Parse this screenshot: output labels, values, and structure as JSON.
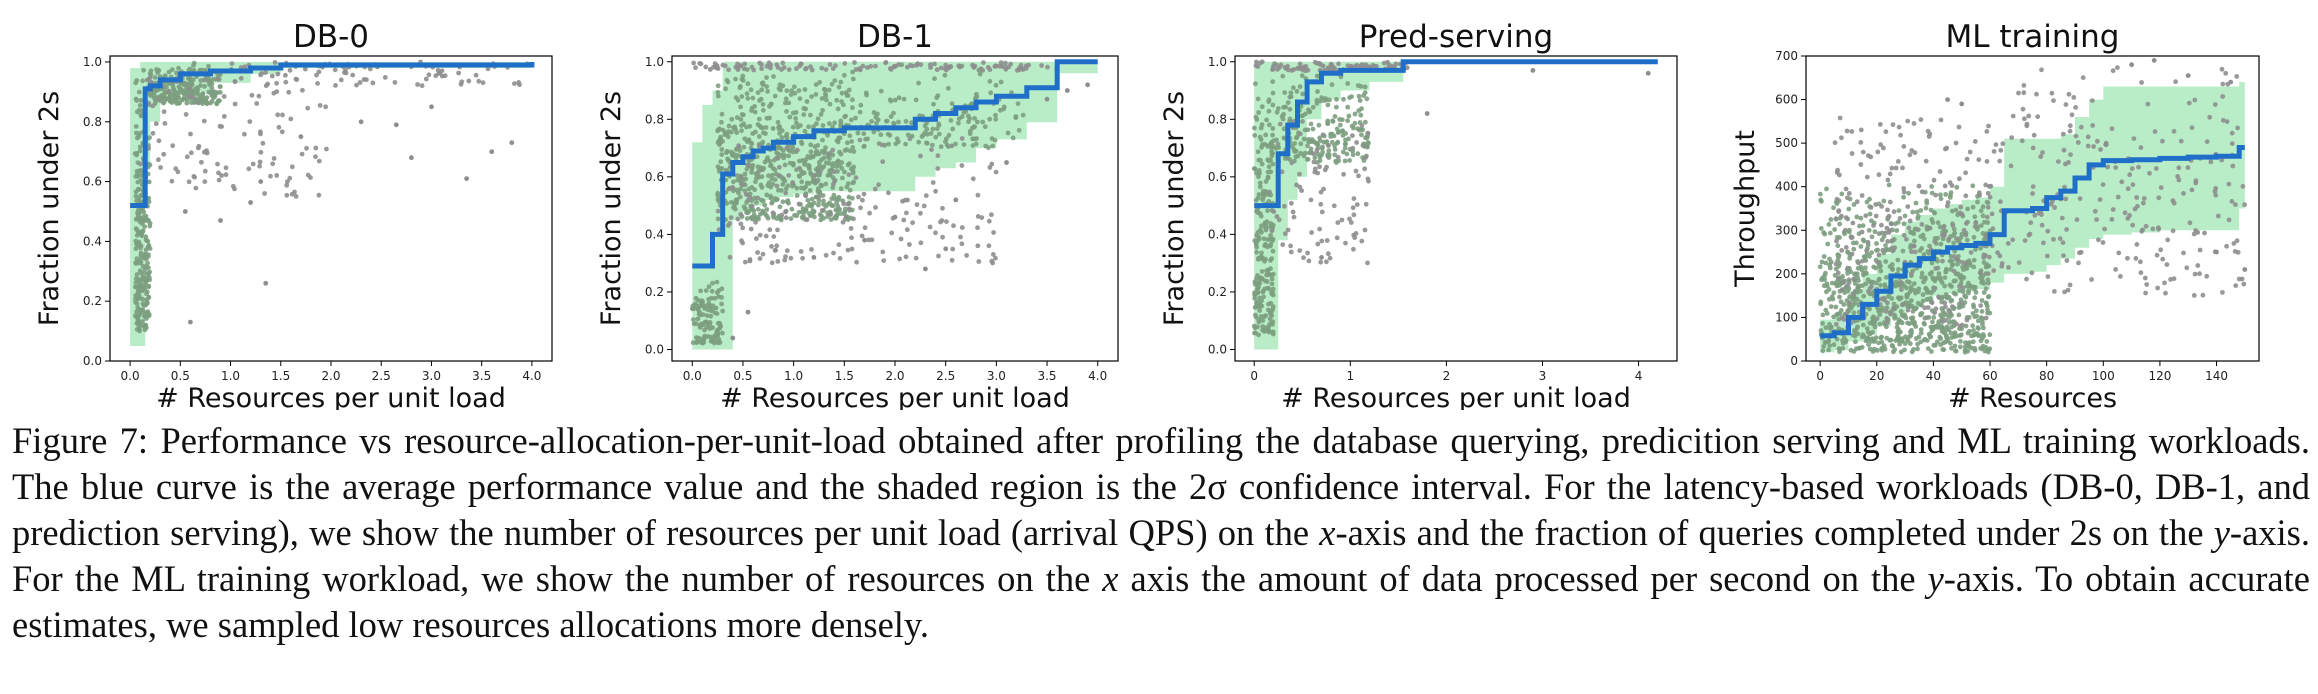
{
  "colors": {
    "mean_curve": "#1f6fc9",
    "band": "#b9edc7",
    "points_dense": "#7c9f7f",
    "points_sparse": "#8e8e8e",
    "axis": "#000000"
  },
  "chart_data": [
    {
      "type": "scatter",
      "title": "DB-0",
      "xlabel": "# Resources per unit load",
      "ylabel": "Fraction under 2s",
      "xlim": [
        -0.2,
        4.2
      ],
      "ylim": [
        0.0,
        1.02
      ],
      "xticks": [
        0.0,
        0.5,
        1.0,
        1.5,
        2.0,
        2.5,
        3.0,
        3.5,
        4.0
      ],
      "xtick_labels": [
        "0.0",
        "0.5",
        "1.0",
        "1.5",
        "2.0",
        "2.5",
        "3.0",
        "3.5",
        "4.0"
      ],
      "yticks": [
        0.0,
        0.2,
        0.4,
        0.6,
        0.8,
        1.0
      ],
      "ytick_labels": [
        "0.0",
        "0.2",
        "0.4",
        "0.6",
        "0.8",
        "1.0"
      ],
      "mean_x": [
        0.0,
        0.1,
        0.15,
        0.2,
        0.3,
        0.5,
        0.8,
        1.2,
        1.5,
        4.0
      ],
      "mean_y": [
        0.52,
        0.52,
        0.91,
        0.92,
        0.94,
        0.96,
        0.97,
        0.98,
        0.99,
        1.0
      ],
      "band_lower": [
        0.05,
        0.05,
        0.65,
        0.8,
        0.88,
        0.9,
        0.93,
        0.96,
        0.98,
        1.0
      ],
      "band_upper": [
        0.98,
        1.0,
        1.0,
        1.0,
        1.0,
        1.0,
        1.0,
        1.0,
        1.0,
        1.0
      ],
      "scatter_clusters": [
        {
          "x": [
            0.05,
            0.2
          ],
          "y": [
            0.1,
            1.0
          ],
          "n": 260,
          "density": "dense"
        },
        {
          "x": [
            0.2,
            0.9
          ],
          "y": [
            0.86,
            1.0
          ],
          "n": 240,
          "density": "dense"
        },
        {
          "x": [
            0.1,
            2.0
          ],
          "y": [
            0.55,
            1.0
          ],
          "n": 120,
          "density": "sparse"
        },
        {
          "x": [
            1.0,
            4.0
          ],
          "y": [
            0.92,
            1.0
          ],
          "n": 80,
          "density": "sparse"
        }
      ],
      "scatter_points": [
        [
          0.6,
          0.13
        ],
        [
          1.35,
          0.26
        ],
        [
          0.55,
          0.5
        ],
        [
          0.9,
          0.47
        ],
        [
          1.3,
          0.6
        ],
        [
          3.6,
          0.7
        ],
        [
          3.35,
          0.61
        ],
        [
          2.8,
          0.68
        ],
        [
          2.65,
          0.79
        ],
        [
          3.0,
          0.85
        ],
        [
          3.8,
          0.73
        ],
        [
          1.7,
          0.75
        ],
        [
          2.3,
          0.8
        ],
        [
          1.2,
          0.53
        ]
      ]
    },
    {
      "type": "scatter",
      "title": "DB-1",
      "xlabel": "# Resources per unit load",
      "ylabel": "Fraction under 2s",
      "xlim": [
        -0.2,
        4.2
      ],
      "ylim": [
        -0.04,
        1.02
      ],
      "xticks": [
        0.0,
        0.5,
        1.0,
        1.5,
        2.0,
        2.5,
        3.0,
        3.5,
        4.0
      ],
      "xtick_labels": [
        "0.0",
        "0.5",
        "1.0",
        "1.5",
        "2.0",
        "2.5",
        "3.0",
        "3.5",
        "4.0"
      ],
      "yticks": [
        0.0,
        0.2,
        0.4,
        0.6,
        0.8,
        1.0
      ],
      "ytick_labels": [
        "0.0",
        "0.2",
        "0.4",
        "0.6",
        "0.8",
        "1.0"
      ],
      "mean_x": [
        0.0,
        0.1,
        0.2,
        0.3,
        0.4,
        0.5,
        0.6,
        0.7,
        0.8,
        1.0,
        1.2,
        1.5,
        2.0,
        2.2,
        2.4,
        2.6,
        2.8,
        3.0,
        3.3,
        3.6,
        4.0
      ],
      "mean_y": [
        0.29,
        0.29,
        0.4,
        0.61,
        0.65,
        0.67,
        0.69,
        0.7,
        0.72,
        0.74,
        0.76,
        0.77,
        0.77,
        0.8,
        0.82,
        0.84,
        0.86,
        0.88,
        0.91,
        1.0,
        1.0
      ],
      "band_lower": [
        0.0,
        0.0,
        0.0,
        0.0,
        0.45,
        0.48,
        0.5,
        0.52,
        0.53,
        0.54,
        0.55,
        0.55,
        0.55,
        0.6,
        0.63,
        0.65,
        0.7,
        0.73,
        0.79,
        0.96,
        1.0
      ],
      "band_upper": [
        0.72,
        0.85,
        0.9,
        1.0,
        1.0,
        1.0,
        1.0,
        1.0,
        1.0,
        1.0,
        1.0,
        1.0,
        1.0,
        1.0,
        1.0,
        1.0,
        1.0,
        1.0,
        1.0,
        1.0,
        1.0
      ],
      "scatter_clusters": [
        {
          "x": [
            0.0,
            0.3
          ],
          "y": [
            0.02,
            0.25
          ],
          "n": 110,
          "density": "dense"
        },
        {
          "x": [
            0.25,
            1.6
          ],
          "y": [
            0.45,
            1.0
          ],
          "n": 650,
          "density": "dense"
        },
        {
          "x": [
            1.6,
            3.3
          ],
          "y": [
            0.7,
            1.0
          ],
          "n": 160,
          "density": "dense"
        },
        {
          "x": [
            0.25,
            3.0
          ],
          "y": [
            0.3,
            0.75
          ],
          "n": 180,
          "density": "sparse"
        },
        {
          "x": [
            0.0,
            3.6
          ],
          "y": [
            0.97,
            1.0
          ],
          "n": 120,
          "density": "sparse"
        }
      ],
      "scatter_points": [
        [
          0.4,
          0.04
        ],
        [
          0.55,
          0.13
        ],
        [
          2.3,
          0.28
        ],
        [
          2.5,
          0.35
        ],
        [
          3.5,
          0.87
        ],
        [
          3.7,
          0.9
        ],
        [
          3.9,
          0.92
        ],
        [
          2.0,
          0.46
        ],
        [
          2.6,
          0.52
        ],
        [
          3.1,
          0.65
        ],
        [
          1.7,
          0.38
        ],
        [
          1.2,
          0.32
        ]
      ]
    },
    {
      "type": "scatter",
      "title": "Pred-serving",
      "xlabel": "# Resources per unit load",
      "ylabel": "Fraction under 2s",
      "xlim": [
        -0.2,
        4.4
      ],
      "ylim": [
        -0.04,
        1.02
      ],
      "xticks": [
        0,
        1,
        2,
        3,
        4
      ],
      "xtick_labels": [
        "0",
        "1",
        "2",
        "3",
        "4"
      ],
      "yticks": [
        0.0,
        0.2,
        0.4,
        0.6,
        0.8,
        1.0
      ],
      "ytick_labels": [
        "0.0",
        "0.2",
        "0.4",
        "0.6",
        "0.8",
        "1.0"
      ],
      "mean_x": [
        0.0,
        0.15,
        0.25,
        0.35,
        0.45,
        0.55,
        0.7,
        0.9,
        1.2,
        1.55,
        4.2
      ],
      "mean_y": [
        0.5,
        0.5,
        0.68,
        0.78,
        0.86,
        0.93,
        0.96,
        0.97,
        0.97,
        1.0,
        1.0
      ],
      "band_lower": [
        0.0,
        0.0,
        0.38,
        0.52,
        0.6,
        0.8,
        0.87,
        0.9,
        0.93,
        1.0,
        1.0
      ],
      "band_upper": [
        1.0,
        1.0,
        1.0,
        1.0,
        1.0,
        1.0,
        1.0,
        1.0,
        1.0,
        1.0,
        1.0
      ],
      "scatter_clusters": [
        {
          "x": [
            0.0,
            0.2
          ],
          "y": [
            0.05,
            1.0
          ],
          "n": 220,
          "density": "dense"
        },
        {
          "x": [
            0.15,
            1.2
          ],
          "y": [
            0.65,
            1.0
          ],
          "n": 230,
          "density": "dense"
        },
        {
          "x": [
            0.15,
            1.2
          ],
          "y": [
            0.3,
            0.8
          ],
          "n": 90,
          "density": "sparse"
        },
        {
          "x": [
            0.0,
            1.6
          ],
          "y": [
            0.97,
            1.0
          ],
          "n": 90,
          "density": "sparse"
        }
      ],
      "scatter_points": [
        [
          0.7,
          0.32
        ],
        [
          1.8,
          0.82
        ],
        [
          2.9,
          0.97
        ],
        [
          4.1,
          0.96
        ]
      ]
    },
    {
      "type": "scatter",
      "title": "ML training",
      "xlabel": "# Resources",
      "ylabel": "Throughput",
      "xlim": [
        -5,
        155
      ],
      "ylim": [
        0,
        700
      ],
      "xticks": [
        0,
        20,
        40,
        60,
        80,
        100,
        120,
        140
      ],
      "xtick_labels": [
        "0",
        "20",
        "40",
        "60",
        "80",
        "100",
        "120",
        "140"
      ],
      "yticks": [
        0,
        100,
        200,
        300,
        400,
        500,
        600,
        700
      ],
      "ytick_labels": [
        "0",
        "100",
        "200",
        "300",
        "400",
        "500",
        "600",
        "700"
      ],
      "mean_x": [
        0,
        5,
        10,
        15,
        20,
        25,
        30,
        35,
        40,
        45,
        50,
        55,
        60,
        65,
        75,
        80,
        85,
        90,
        95,
        100,
        110,
        120,
        130,
        140,
        148,
        150
      ],
      "mean_y": [
        58,
        65,
        100,
        130,
        160,
        195,
        220,
        235,
        250,
        260,
        265,
        270,
        290,
        345,
        350,
        375,
        390,
        420,
        450,
        460,
        462,
        465,
        468,
        470,
        490,
        490
      ],
      "band_lower": [
        20,
        25,
        45,
        60,
        80,
        100,
        120,
        135,
        150,
        155,
        160,
        165,
        180,
        200,
        205,
        220,
        235,
        260,
        280,
        290,
        295,
        300,
        300,
        300,
        350,
        350
      ],
      "band_upper": [
        95,
        110,
        160,
        200,
        245,
        290,
        320,
        335,
        350,
        360,
        370,
        375,
        400,
        510,
        510,
        510,
        520,
        560,
        600,
        630,
        630,
        630,
        630,
        630,
        640,
        640
      ],
      "scatter_clusters": [
        {
          "x": [
            0,
            60
          ],
          "y": [
            20,
            420
          ],
          "n": 900,
          "density": "dense"
        },
        {
          "x": [
            5,
            60
          ],
          "y": [
            80,
            560
          ],
          "n": 240,
          "density": "sparse"
        },
        {
          "x": [
            60,
            150
          ],
          "y": [
            150,
            680
          ],
          "n": 260,
          "density": "sparse"
        }
      ],
      "scatter_points": [
        [
          45,
          600
        ],
        [
          50,
          590
        ],
        [
          110,
          680
        ],
        [
          118,
          690
        ],
        [
          130,
          655
        ],
        [
          145,
          640
        ],
        [
          140,
          250
        ],
        [
          150,
          210
        ]
      ]
    }
  ],
  "caption": {
    "label": "Figure 7:",
    "seg1": " Performance vs resource-allocation-per-unit-load obtained after profiling the database querying, predicition serving and ML training workloads. The blue curve is the average performance value and the shaded region is the 2σ confidence interval. For the latency-based workloads (DB-0, DB-1, and prediction serving), we show the number of resources per unit load (arrival QPS) on the ",
    "x1": "x",
    "seg2": "-axis and the fraction of queries completed under 2s on the ",
    "y1": "y",
    "seg3": "-axis. For the ML training workload, we show the number of resources on the ",
    "x2": "x",
    "seg4": " axis the amount of data processed per second on the ",
    "y2": "y",
    "seg5": "-axis. To obtain accurate estimates, we sampled low resources allocations more densely."
  }
}
